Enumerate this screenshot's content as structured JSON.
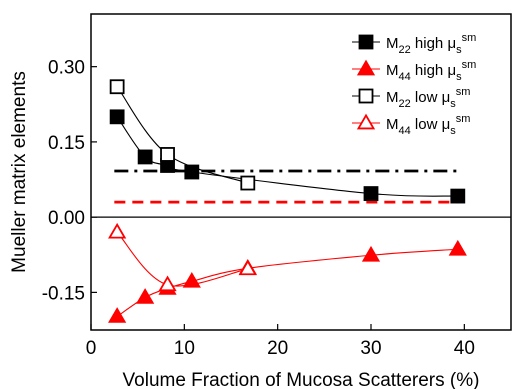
{
  "chart_data": {
    "type": "scatter",
    "xlabel": "Volume Fraction of Mucosa Scatterers (%)",
    "ylabel": "Mueller matrix elements",
    "xlim": [
      0,
      45
    ],
    "ylim": [
      -0.225,
      0.405
    ],
    "x_ticks": [
      0,
      10,
      20,
      30,
      40
    ],
    "x_tick_labels": [
      "0",
      "10",
      "20",
      "30",
      "40"
    ],
    "y_ticks": [
      -0.15,
      0.0,
      0.15,
      0.3
    ],
    "y_tick_labels": [
      "-0.15",
      "0.00",
      "0.15",
      "0.30"
    ],
    "zero_line": true,
    "grid": false,
    "legend_position": "top-right",
    "colors": {
      "black": "#000000",
      "red": "#ff0000"
    },
    "series": [
      {
        "name": "M22 high μs sm",
        "legend": {
          "main": "M",
          "sub": "22",
          "rest": " high ",
          "mu": "μ",
          "mu_sub": "s",
          "mu_sup": "sm"
        },
        "color": "#000000",
        "marker": "square",
        "filled": true,
        "x": [
          2.8,
          5.8,
          8.2,
          10.8,
          30.0,
          39.3
        ],
        "y": [
          0.2,
          0.12,
          0.103,
          0.09,
          0.047,
          0.042
        ]
      },
      {
        "name": "M44 high μs sm",
        "legend": {
          "main": "M",
          "sub": "44",
          "rest": " high ",
          "mu": "μ",
          "mu_sub": "s",
          "mu_sup": "sm"
        },
        "color": "#ff0000",
        "marker": "triangle",
        "filled": true,
        "x": [
          2.8,
          5.8,
          8.2,
          10.8,
          16.8,
          30.0,
          39.3
        ],
        "y": [
          -0.198,
          -0.16,
          -0.142,
          -0.128,
          -0.102,
          -0.076,
          -0.064
        ]
      },
      {
        "name": "M22 low μs sm",
        "legend": {
          "main": "M",
          "sub": "22",
          "rest": " low ",
          "mu": "μ",
          "mu_sub": "s",
          "mu_sup": "sm"
        },
        "color": "#000000",
        "marker": "square",
        "filled": false,
        "x": [
          2.8,
          8.2,
          16.8
        ],
        "y": [
          0.26,
          0.125,
          0.068
        ]
      },
      {
        "name": "M44 low μs sm",
        "legend": {
          "main": "M",
          "sub": "44",
          "rest": " low ",
          "mu": "μ",
          "mu_sub": "s",
          "mu_sup": "sm"
        },
        "color": "#ff0000",
        "marker": "triangle",
        "filled": false,
        "x": [
          2.8,
          8.2,
          16.8
        ],
        "y": [
          -0.03,
          -0.135,
          -0.103
        ]
      }
    ],
    "reference_lines": [
      {
        "y": 0.092,
        "x_range": [
          2.5,
          39.5
        ],
        "color": "#000000",
        "style": "dash-dot"
      },
      {
        "y": 0.03,
        "x_range": [
          2.5,
          39.5
        ],
        "color": "#ff0000",
        "style": "dash"
      }
    ]
  }
}
